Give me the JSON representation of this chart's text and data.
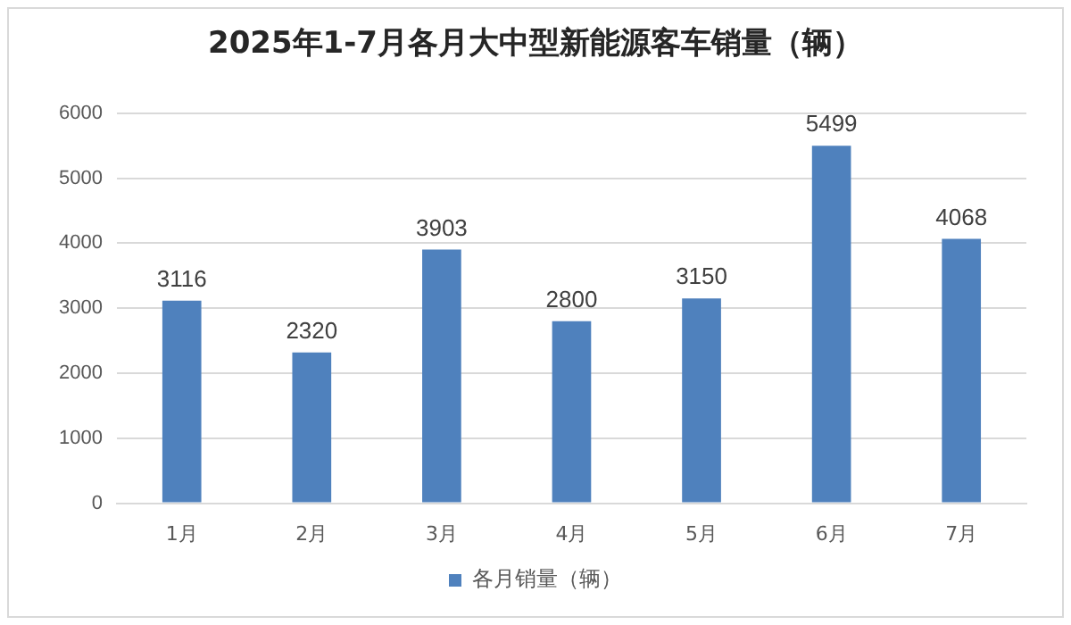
{
  "chart_data": {
    "type": "bar",
    "title": "2025年1-7月各月大中型新能源客车销量（辆）",
    "categories": [
      "1月",
      "2月",
      "3月",
      "4月",
      "5月",
      "6月",
      "7月"
    ],
    "series": [
      {
        "name": "各月销量（辆）",
        "color": "#4f81bd",
        "values": [
          3116,
          2320,
          3903,
          2800,
          3150,
          5499,
          4068
        ]
      }
    ],
    "ylim": [
      0,
      6000
    ],
    "yticks": [
      0,
      1000,
      2000,
      3000,
      4000,
      5000,
      6000
    ],
    "grid": "y",
    "legend": "bottom",
    "data_labels": true
  }
}
